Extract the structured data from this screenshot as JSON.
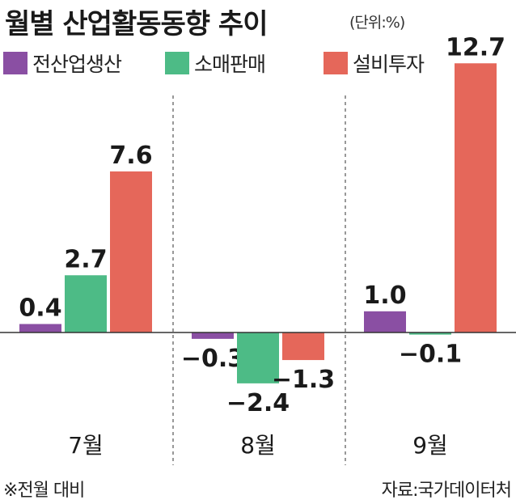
{
  "title": "월별 산업활동동향 추이",
  "unit": "(단위:%)",
  "footnote": "※전월 대비",
  "source": "자료:국가데이터처",
  "colors": {
    "industrial_production": "#8a4fa3",
    "retail_sales": "#4dbb86",
    "facility_investment": "#e5675a",
    "axis": "#333333",
    "divider": "#555555"
  },
  "chart_data": {
    "type": "bar",
    "categories": [
      "7월",
      "8월",
      "9월"
    ],
    "series": [
      {
        "name": "전산업생산",
        "values": [
          0.4,
          -0.3,
          1.0
        ],
        "labels": [
          "0.4",
          "−0.3",
          "1.0"
        ]
      },
      {
        "name": "소매판매",
        "values": [
          2.7,
          -2.4,
          -0.1
        ],
        "labels": [
          "2.7",
          "−2.4",
          "−0.1"
        ]
      },
      {
        "name": "설비투자",
        "values": [
          7.6,
          -1.3,
          12.7
        ],
        "labels": [
          "7.6",
          "−1.3",
          "12.7"
        ]
      }
    ],
    "ylim": [
      -3,
      13
    ],
    "grid": false,
    "legend": "top"
  }
}
